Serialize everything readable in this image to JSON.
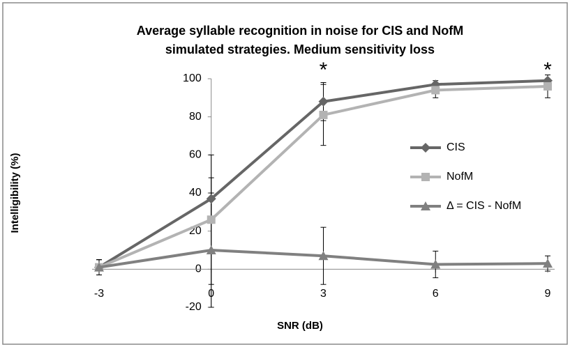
{
  "chart_data": {
    "type": "line",
    "title": [
      "Average syllable recognition in noise for CIS and NofM",
      "simulated strategies. Medium sensitivity loss"
    ],
    "x_label": "SNR (dB)",
    "y_label": "Intelligibility (%)",
    "categories": [
      "-3",
      "0",
      "3",
      "6",
      "9"
    ],
    "series": [
      {
        "name": "CIS",
        "color": "#666666",
        "marker": "diamond",
        "values": [
          1,
          37,
          88,
          97,
          99
        ],
        "errors": [
          4,
          11,
          10,
          2,
          1
        ]
      },
      {
        "name": "NofM",
        "color": "#b3b3b3",
        "marker": "square",
        "values": [
          1,
          26,
          81,
          94,
          96
        ],
        "errors": [
          4,
          34,
          16,
          4,
          6
        ]
      },
      {
        "name": "Δ = CIS - NofM",
        "color": "#808080",
        "marker": "triangle",
        "values": [
          1,
          10,
          7,
          2.5,
          3
        ],
        "errors": [
          4,
          30,
          15,
          7,
          4
        ]
      }
    ],
    "annotations": [
      {
        "text": "*",
        "at": "3"
      },
      {
        "text": "*",
        "at": "9"
      }
    ],
    "ylim": [
      -20,
      100
    ],
    "yticks": [
      -20,
      0,
      20,
      40,
      60,
      80,
      100
    ],
    "legend": "right"
  }
}
